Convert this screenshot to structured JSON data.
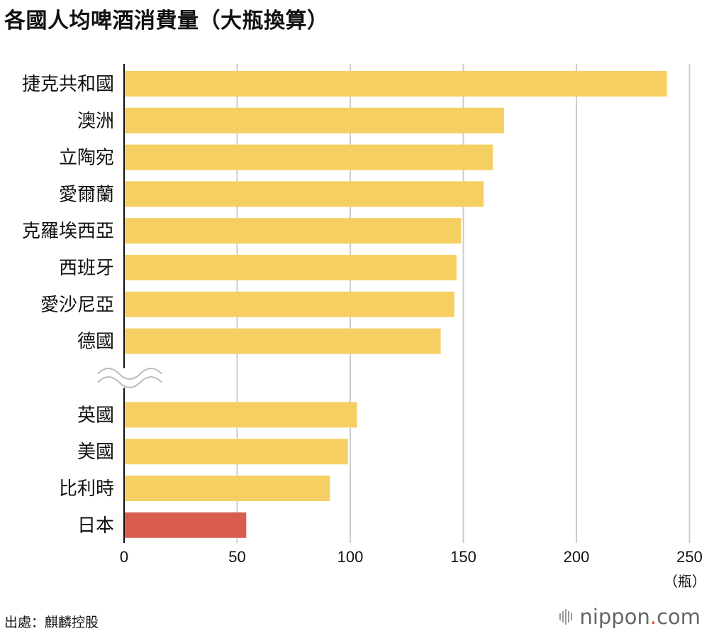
{
  "title": "各國人均啤酒消費量（大瓶換算）",
  "source": "出處：麒麟控股",
  "brand": {
    "name": "nippon",
    "dot": ".",
    "suffix": "com"
  },
  "colors": {
    "bar": "#f5cf62",
    "highlight": "#d95d4f",
    "grid": "#cccccc",
    "axis": "#111111"
  },
  "chart_data": {
    "type": "bar",
    "orientation": "horizontal",
    "title": "各國人均啤酒消費量（大瓶換算）",
    "xlabel": "（瓶）",
    "xlim": [
      0,
      250
    ],
    "xticks": [
      0,
      50,
      100,
      150,
      200,
      250
    ],
    "grid": true,
    "axis_break_after": "德國",
    "categories": [
      "捷克共和國",
      "澳洲",
      "立陶宛",
      "愛爾蘭",
      "克羅埃西亞",
      "西班牙",
      "愛沙尼亞",
      "德國",
      "英國",
      "美國",
      "比利時",
      "日本"
    ],
    "values": [
      240,
      168,
      163,
      159,
      149,
      147,
      146,
      140,
      103,
      99,
      91,
      54
    ],
    "highlight": [
      "日本"
    ]
  }
}
